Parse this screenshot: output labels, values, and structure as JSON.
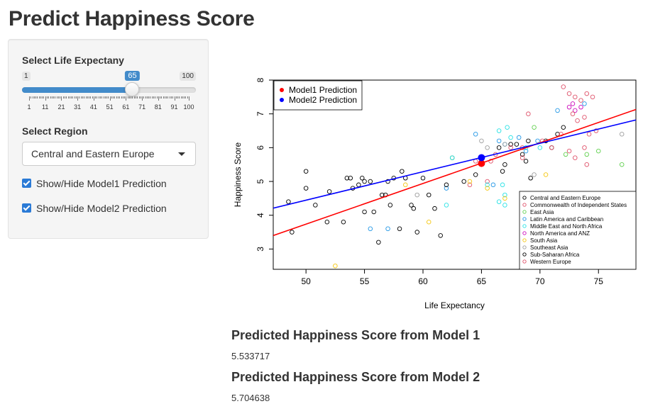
{
  "page_title": "Predict Happiness Score",
  "sidebar": {
    "slider": {
      "label": "Select Life Expectany",
      "min_label": "1",
      "max_label": "100",
      "value_label": "65",
      "min": 1,
      "max": 100,
      "value": 65,
      "ticks": [
        "1",
        "11",
        "21",
        "31",
        "41",
        "51",
        "61",
        "71",
        "81",
        "91",
        "100"
      ]
    },
    "region": {
      "label": "Select Region",
      "selected": "Central and Eastern Europe"
    },
    "checkboxes": [
      {
        "label": "Show/Hide Model1 Prediction",
        "checked": true
      },
      {
        "label": "Show/Hide Model2 Prediction",
        "checked": true
      }
    ]
  },
  "outputs": {
    "model1_heading": "Predicted Happiness Score from Model 1",
    "model1_value": "5.533717",
    "model2_heading": "Predicted Happiness Score from Model 2",
    "model2_value": "5.704638"
  },
  "colors": {
    "accent": "#428bca",
    "model1": "#ff0000",
    "model2": "#0000ff"
  },
  "chart_data": {
    "type": "scatter",
    "xlabel": "Life Expectancy",
    "ylabel": "Happiness Score",
    "xlim": [
      47.2,
      78.2
    ],
    "ylim": [
      2.4,
      8.0
    ],
    "xticks": [
      50,
      55,
      60,
      65,
      70,
      75
    ],
    "yticks": [
      3,
      4,
      5,
      6,
      7,
      8
    ],
    "legend_top": [
      "Model1 Prediction",
      "Model2 Prediction"
    ],
    "legend_top_colors": [
      "#ff0000",
      "#0000ff"
    ],
    "lines": [
      {
        "name": "Model1 Prediction",
        "color": "#ff0000",
        "x": [
          47.2,
          78.2
        ],
        "y": [
          3.4,
          7.13
        ]
      },
      {
        "name": "Model2 Prediction",
        "color": "#0000ff",
        "x": [
          47.2,
          78.2
        ],
        "y": [
          4.21,
          6.82
        ]
      }
    ],
    "predictions": [
      {
        "name": "Model1 Prediction",
        "x": 65,
        "y": 5.533717,
        "color": "#ff0000"
      },
      {
        "name": "Model2 Prediction",
        "x": 65,
        "y": 5.704638,
        "color": "#0000ff"
      }
    ],
    "legend_regions": [
      {
        "name": "Central and Eastern Europe",
        "color": "#000000"
      },
      {
        "name": "Commonwealth of Independent States",
        "color": "#df536b"
      },
      {
        "name": "East Asia",
        "color": "#61d04f"
      },
      {
        "name": "Latin America and Caribbean",
        "color": "#2297e6"
      },
      {
        "name": "Middle East and North Africa",
        "color": "#28e2e5"
      },
      {
        "name": "North America and ANZ",
        "color": "#cd0bbc"
      },
      {
        "name": "South Asia",
        "color": "#f5c710"
      },
      {
        "name": "Southeast Asia",
        "color": "#9e9e9e"
      },
      {
        "name": "Sub-Saharan Africa",
        "color": "#000000"
      },
      {
        "name": "Western Europe",
        "color": "#df536b"
      }
    ],
    "series": [
      {
        "name": "Central and Eastern Europe",
        "color": "#000000",
        "points": [
          [
            66.5,
            6.0
          ],
          [
            67.5,
            6.1
          ],
          [
            68.0,
            6.1
          ],
          [
            68.5,
            5.8
          ],
          [
            69.0,
            6.2
          ],
          [
            70.5,
            6.2
          ],
          [
            71.0,
            6.0
          ],
          [
            72.0,
            6.6
          ],
          [
            67.0,
            5.5
          ],
          [
            66.8,
            5.3
          ],
          [
            69.2,
            5.1
          ],
          [
            71.5,
            6.4
          ],
          [
            64.5,
            5.2
          ],
          [
            68.8,
            5.6
          ]
        ]
      },
      {
        "name": "Commonwealth of Independent States",
        "color": "#df536b",
        "points": [
          [
            64.0,
            4.9
          ],
          [
            64.5,
            5.6
          ],
          [
            65.5,
            5.0
          ],
          [
            65.8,
            5.6
          ],
          [
            66.2,
            5.8
          ],
          [
            67.5,
            6.0
          ],
          [
            68.5,
            6.0
          ],
          [
            62.5,
            5.7
          ]
        ]
      },
      {
        "name": "East Asia",
        "color": "#61d04f",
        "points": [
          [
            62.5,
            5.7
          ],
          [
            69.5,
            6.6
          ],
          [
            72.2,
            5.8
          ],
          [
            74.0,
            5.8
          ],
          [
            75.0,
            5.9
          ],
          [
            77.0,
            5.5
          ]
        ]
      },
      {
        "name": "Latin America and Caribbean",
        "color": "#2297e6",
        "points": [
          [
            55.5,
            3.6
          ],
          [
            57.0,
            3.6
          ],
          [
            62.0,
            4.8
          ],
          [
            64.5,
            6.4
          ],
          [
            66.5,
            6.2
          ],
          [
            67.0,
            6.1
          ],
          [
            68.2,
            6.3
          ],
          [
            68.8,
            5.9
          ],
          [
            69.8,
            6.2
          ],
          [
            71.5,
            7.1
          ],
          [
            73.8,
            7.3
          ],
          [
            66.0,
            4.9
          ]
        ]
      },
      {
        "name": "Middle East and North Africa",
        "color": "#28e2e5",
        "points": [
          [
            62.0,
            4.3
          ],
          [
            62.5,
            5.7
          ],
          [
            65.5,
            4.9
          ],
          [
            66.5,
            6.5
          ],
          [
            67.2,
            6.6
          ],
          [
            68.8,
            6.0
          ],
          [
            67.0,
            4.6
          ],
          [
            66.8,
            4.9
          ],
          [
            70.0,
            6.0
          ],
          [
            67.5,
            6.3
          ],
          [
            66.5,
            4.4
          ],
          [
            67.0,
            4.3
          ]
        ]
      },
      {
        "name": "North America and ANZ",
        "color": "#cd0bbc",
        "points": [
          [
            72.5,
            7.2
          ],
          [
            73.0,
            7.1
          ],
          [
            72.8,
            7.3
          ],
          [
            73.5,
            7.2
          ]
        ]
      },
      {
        "name": "South Asia",
        "color": "#f5c710",
        "points": [
          [
            52.5,
            2.5
          ],
          [
            60.5,
            3.8
          ],
          [
            58.5,
            4.9
          ],
          [
            64.0,
            5.0
          ],
          [
            65.5,
            4.8
          ],
          [
            67.0,
            4.5
          ],
          [
            70.5,
            5.2
          ]
        ]
      },
      {
        "name": "Southeast Asia",
        "color": "#9e9e9e",
        "points": [
          [
            59.5,
            4.6
          ],
          [
            65.5,
            6.0
          ],
          [
            67.0,
            6.1
          ],
          [
            69.5,
            5.2
          ],
          [
            77.0,
            6.4
          ],
          [
            65.0,
            6.2
          ]
        ]
      },
      {
        "name": "Sub-Saharan Africa",
        "color": "#000000",
        "points": [
          [
            48.5,
            4.4
          ],
          [
            48.8,
            3.5
          ],
          [
            50.0,
            4.8
          ],
          [
            50.0,
            5.3
          ],
          [
            50.8,
            4.3
          ],
          [
            51.8,
            3.8
          ],
          [
            52.0,
            4.7
          ],
          [
            53.2,
            3.8
          ],
          [
            53.8,
            5.1
          ],
          [
            54.0,
            4.8
          ],
          [
            54.5,
            4.9
          ],
          [
            55.0,
            5.0
          ],
          [
            54.8,
            5.1
          ],
          [
            55.5,
            5.0
          ],
          [
            55.0,
            4.1
          ],
          [
            55.8,
            4.1
          ],
          [
            56.5,
            4.6
          ],
          [
            56.2,
            3.2
          ],
          [
            56.8,
            4.6
          ],
          [
            57.2,
            4.3
          ],
          [
            57.0,
            5.0
          ],
          [
            57.5,
            5.1
          ],
          [
            58.0,
            3.6
          ],
          [
            58.2,
            5.3
          ],
          [
            58.5,
            5.1
          ],
          [
            59.0,
            4.3
          ],
          [
            59.2,
            4.2
          ],
          [
            59.5,
            3.5
          ],
          [
            60.0,
            5.1
          ],
          [
            60.5,
            4.6
          ],
          [
            61.5,
            3.4
          ],
          [
            61.0,
            4.2
          ],
          [
            62.0,
            4.9
          ],
          [
            63.5,
            5.0
          ],
          [
            53.5,
            5.1
          ]
        ]
      },
      {
        "name": "Western Europe",
        "color": "#df536b",
        "points": [
          [
            72.0,
            7.8
          ],
          [
            72.5,
            7.6
          ],
          [
            73.0,
            7.5
          ],
          [
            73.5,
            7.4
          ],
          [
            74.0,
            7.6
          ],
          [
            74.5,
            7.5
          ],
          [
            72.8,
            7.0
          ],
          [
            73.2,
            6.8
          ],
          [
            73.8,
            6.9
          ],
          [
            74.2,
            6.4
          ],
          [
            74.8,
            6.5
          ],
          [
            72.5,
            5.9
          ],
          [
            73.0,
            5.7
          ],
          [
            73.8,
            6.0
          ],
          [
            74.0,
            5.5
          ],
          [
            69.0,
            7.0
          ],
          [
            71.8,
            6.4
          ],
          [
            70.2,
            6.2
          ],
          [
            68.5,
            5.7
          ],
          [
            71.0,
            6.0
          ]
        ]
      }
    ]
  }
}
